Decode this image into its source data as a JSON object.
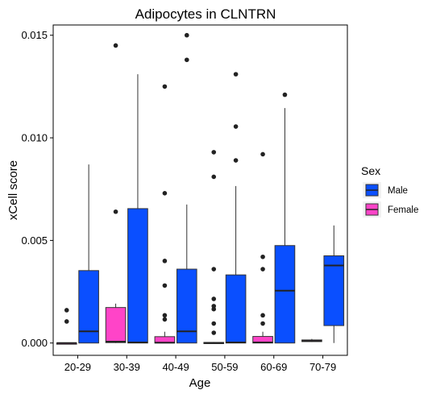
{
  "chart_data": {
    "type": "boxplot",
    "title": "Adipocytes in CLNTRN",
    "xlabel": "Age",
    "ylabel": "xCell score",
    "categories": [
      "20-29",
      "30-39",
      "40-49",
      "50-59",
      "60-69",
      "70-79"
    ],
    "ylim": [
      -0.0006,
      0.0155
    ],
    "yticks": [
      0.0,
      0.005,
      0.01,
      0.015
    ],
    "ytick_labels": [
      "0.000",
      "0.005",
      "0.010",
      "0.015"
    ],
    "grid": false,
    "legend": {
      "title": "Sex",
      "placement": "right",
      "entries": [
        {
          "label": "Male",
          "color": "#0a4fff"
        },
        {
          "label": "Female",
          "color": "#ff44c8"
        }
      ]
    },
    "series": [
      {
        "name": "Female",
        "color": "#ff44c8",
        "boxes": [
          {
            "category": "20-29",
            "whisker_low": 0,
            "q1": 0,
            "median": 0,
            "q3": 0,
            "whisker_high": 0,
            "outliers": [
              0.0016,
              0.00105
            ]
          },
          {
            "category": "30-39",
            "whisker_low": 0,
            "q1": 2e-05,
            "median": 7e-05,
            "q3": 0.00173,
            "whisker_high": 0.00192,
            "outliers": [
              0.0145,
              0.0064
            ]
          },
          {
            "category": "40-49",
            "whisker_low": 0,
            "q1": 0,
            "median": 2e-05,
            "q3": 0.00031,
            "whisker_high": 0.00055,
            "outliers": [
              0.0125,
              0.0073,
              0.004,
              0.0028,
              0.00135,
              0.00115
            ]
          },
          {
            "category": "50-59",
            "whisker_low": 0,
            "q1": 0,
            "median": 0,
            "q3": 3e-05,
            "whisker_high": 5e-05,
            "outliers": [
              0.0093,
              0.0081,
              0.0036,
              0.00215,
              0.0018,
              0.00165,
              0.00095,
              0.0005
            ]
          },
          {
            "category": "60-69",
            "whisker_low": 0,
            "q1": 0,
            "median": 3e-05,
            "q3": 0.00032,
            "whisker_high": 0.00055,
            "outliers": [
              0.0092,
              0.0042,
              0.0036,
              0.00135,
              0.00095
            ]
          },
          {
            "category": "70-79",
            "whisker_low": 5e-05,
            "q1": 7e-05,
            "median": 0.0001,
            "q3": 0.00015,
            "whisker_high": 0.0002,
            "outliers": []
          }
        ]
      },
      {
        "name": "Male",
        "color": "#0a4fff",
        "boxes": [
          {
            "category": "20-29",
            "whisker_low": 0,
            "q1": 0,
            "median": 0.00057,
            "q3": 0.00353,
            "whisker_high": 0.0087,
            "outliers": []
          },
          {
            "category": "30-39",
            "whisker_low": 0,
            "q1": 0,
            "median": 3e-05,
            "q3": 0.00655,
            "whisker_high": 0.0131,
            "outliers": []
          },
          {
            "category": "40-49",
            "whisker_low": 0,
            "q1": 0,
            "median": 0.00057,
            "q3": 0.0036,
            "whisker_high": 0.00675,
            "outliers": [
              0.015,
              0.0138
            ]
          },
          {
            "category": "50-59",
            "whisker_low": 0,
            "q1": 0,
            "median": 3e-05,
            "q3": 0.00332,
            "whisker_high": 0.00765,
            "outliers": [
              0.0131,
              0.01055,
              0.0089
            ]
          },
          {
            "category": "60-69",
            "whisker_low": 0,
            "q1": 0,
            "median": 0.00255,
            "q3": 0.00475,
            "whisker_high": 0.01145,
            "outliers": [
              0.0121
            ]
          },
          {
            "category": "70-79",
            "whisker_low": 0,
            "q1": 0.00085,
            "median": 0.00378,
            "q3": 0.00425,
            "whisker_high": 0.00573,
            "outliers": []
          }
        ]
      }
    ]
  }
}
